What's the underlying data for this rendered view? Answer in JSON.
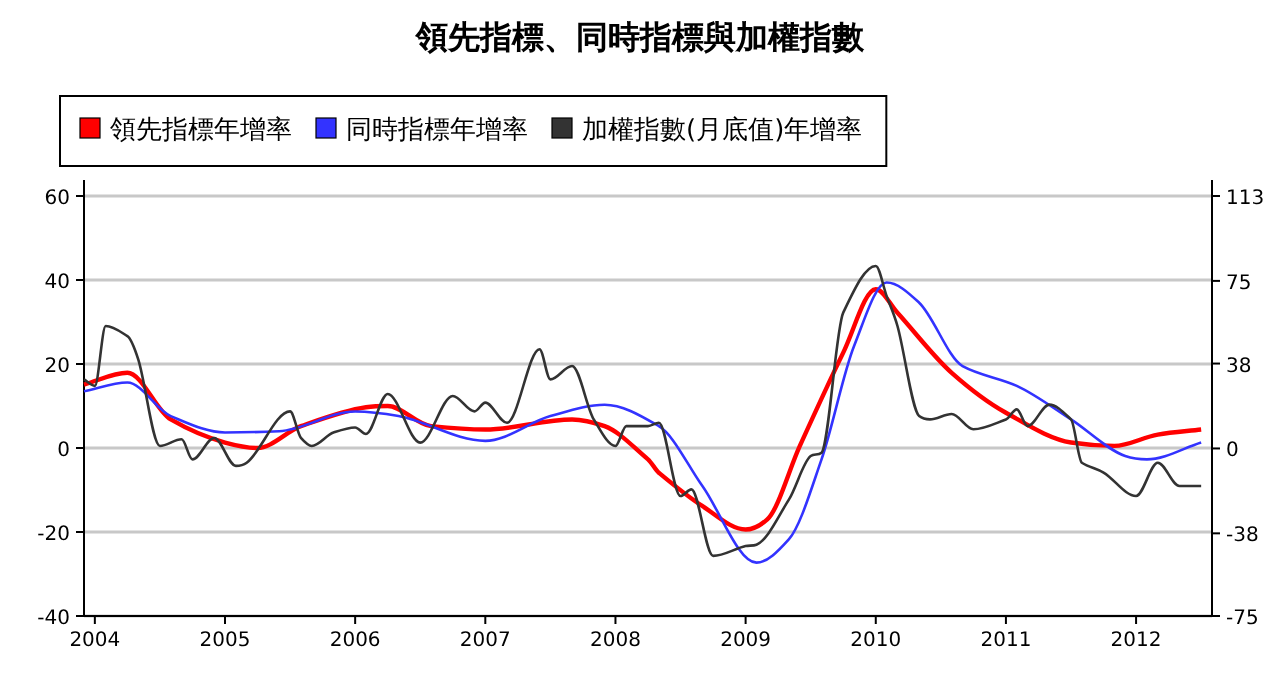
{
  "chart_data": {
    "type": "line",
    "title": "領先指標、同時指標與加權指數",
    "legend": "top",
    "grid": "y",
    "marker": "none",
    "line_style": "solid",
    "xlim": [
      "2003-12",
      "2012-08"
    ],
    "xticks": [
      "2004",
      "2005",
      "2006",
      "2007",
      "2008",
      "2009",
      "2010",
      "2011",
      "2012"
    ],
    "ylim": [
      -40,
      60
    ],
    "yticks": [
      -40,
      -20,
      0,
      20,
      40,
      60
    ],
    "y2lim": [
      -75,
      113
    ],
    "y2ticks": [
      -75,
      -38,
      0,
      38,
      75,
      113
    ],
    "series": [
      {
        "name": "領先指標年增率",
        "color": "#ff0000",
        "x": [
          "2003-12",
          "2004-04",
          "2004-08",
          "2005-01",
          "2005-04",
          "2005-08",
          "2006-02",
          "2006-04",
          "2006-08",
          "2007-01",
          "2007-09",
          "2007-12",
          "2008-04",
          "2008-05",
          "2008-09",
          "2009-01",
          "2009-03",
          "2009-06",
          "2009-10",
          "2010-01",
          "2010-03",
          "2010-08",
          "2011-01",
          "2011-07",
          "2011-11",
          "2012-03",
          "2012-07"
        ],
        "values": [
          15.1,
          17.9,
          6.8,
          1.3,
          0,
          5.2,
          9.7,
          10,
          5.2,
          4.4,
          6.8,
          5.2,
          -2.7,
          -5.9,
          -13.8,
          -19.4,
          -17,
          0.5,
          22.7,
          37.8,
          32.2,
          17.9,
          8.4,
          1.3,
          0.5,
          3.2,
          4.4
        ]
      },
      {
        "name": "同時指標年增率",
        "color": "#3333ff",
        "x": [
          "2003-12",
          "2004-04",
          "2004-08",
          "2005-01",
          "2005-06",
          "2006-01",
          "2006-05",
          "2007-01",
          "2007-07",
          "2007-12",
          "2008-05",
          "2008-09",
          "2009-02",
          "2009-05",
          "2009-08",
          "2009-11",
          "2010-02",
          "2010-05",
          "2010-09",
          "2011-02",
          "2011-07",
          "2011-12",
          "2012-02",
          "2012-07"
        ],
        "values": [
          13.5,
          15.6,
          7.6,
          3.7,
          4,
          8.7,
          7.6,
          1.7,
          7.6,
          10.3,
          5.2,
          -9,
          -27.3,
          -21.7,
          -2.7,
          24.3,
          39.4,
          34.6,
          19.5,
          14.8,
          6.8,
          -1.9,
          -2.7,
          1.3
        ]
      },
      {
        "name": "加權指數(月底值)年增率",
        "color": "#333333",
        "axis": "y2",
        "x": [
          "2003-12",
          "2004-01",
          "2004-02",
          "2004-04",
          "2004-05",
          "2004-07",
          "2004-09",
          "2004-10",
          "2004-12",
          "2005-02",
          "2005-03",
          "2005-07",
          "2005-08",
          "2005-09",
          "2005-11",
          "2006-01",
          "2006-02",
          "2006-04",
          "2006-07",
          "2006-10",
          "2006-12",
          "2007-01",
          "2007-03",
          "2007-06",
          "2007-07",
          "2007-09",
          "2007-11",
          "2008-01",
          "2008-02",
          "2008-04",
          "2008-05",
          "2008-07",
          "2008-08",
          "2008-10",
          "2009-01",
          "2009-02",
          "2009-05",
          "2009-07",
          "2009-08",
          "2009-10",
          "2010-01",
          "2010-02",
          "2010-03",
          "2010-05",
          "2010-06",
          "2010-08",
          "2010-10",
          "2011-01",
          "2011-02",
          "2011-03",
          "2011-05",
          "2011-07",
          "2011-08",
          "2011-10",
          "2012-01",
          "2012-03",
          "2012-05",
          "2012-07"
        ],
        "values": [
          30.9,
          28,
          54.8,
          50.3,
          39.9,
          1.1,
          4.1,
          -4.9,
          4.7,
          -7.8,
          -6.4,
          16.6,
          4.7,
          1.1,
          7.1,
          9.4,
          6.5,
          24.4,
          2.6,
          23.5,
          16.6,
          20.5,
          11.5,
          44.4,
          30.9,
          36.9,
          13,
          1.1,
          10,
          10,
          11.5,
          -21.3,
          -18.3,
          -48.1,
          -43.7,
          -43.1,
          -22.8,
          -3.4,
          -1.9,
          60.8,
          81.7,
          68.2,
          54.8,
          14.5,
          13,
          15.4,
          8.6,
          13,
          17.5,
          10,
          19.6,
          13,
          -6.4,
          -10.8,
          -21.3,
          -6.4,
          -16.8,
          -16.8
        ]
      }
    ]
  }
}
